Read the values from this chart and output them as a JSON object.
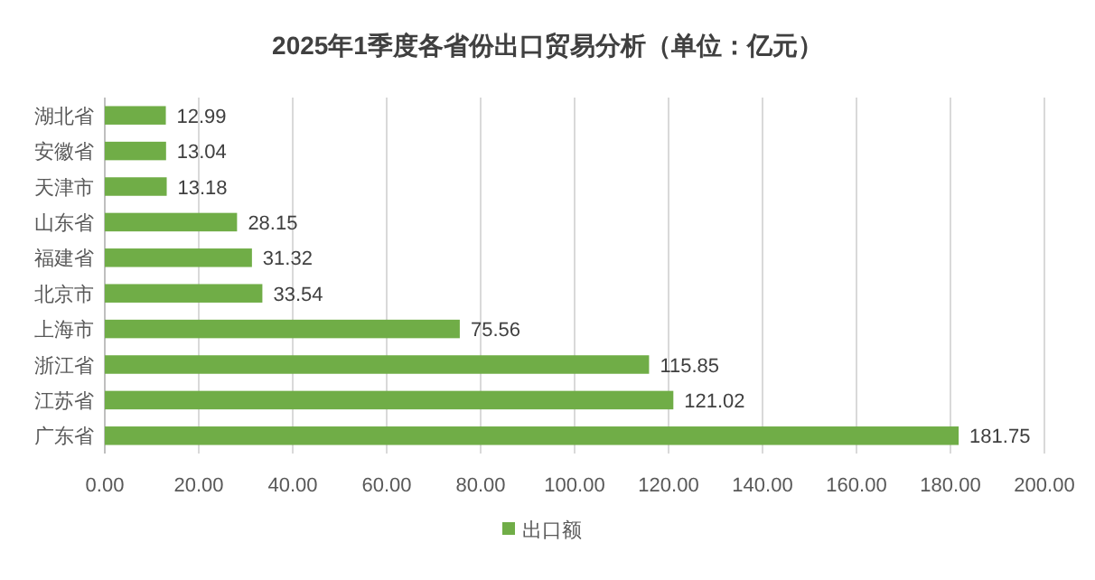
{
  "chart_data": {
    "type": "bar",
    "orientation": "horizontal",
    "title": "2025年1季度各省份出口贸易分析（单位：亿元）",
    "categories": [
      "湖北省",
      "安徽省",
      "天津市",
      "山东省",
      "福建省",
      "北京市",
      "上海市",
      "浙江省",
      "江苏省",
      "广东省"
    ],
    "series": [
      {
        "name": "出口额",
        "color": "#70ad47",
        "values": [
          12.99,
          13.04,
          13.18,
          28.15,
          31.32,
          33.54,
          75.56,
          115.85,
          121.02,
          181.75
        ]
      }
    ],
    "xlim": [
      0,
      200
    ],
    "xticks": [
      {
        "value": 0,
        "label": "0.00"
      },
      {
        "value": 20,
        "label": "20.00"
      },
      {
        "value": 40,
        "label": "40.00"
      },
      {
        "value": 60,
        "label": "60.00"
      },
      {
        "value": 80,
        "label": "80.00"
      },
      {
        "value": 100,
        "label": "100.00"
      },
      {
        "value": 120,
        "label": "120.00"
      },
      {
        "value": 140,
        "label": "140.00"
      },
      {
        "value": 160,
        "label": "160.00"
      },
      {
        "value": 180,
        "label": "180.00"
      },
      {
        "value": 200,
        "label": "200.00"
      }
    ],
    "grid": "x",
    "legend": "bottom",
    "data_labels": true
  }
}
